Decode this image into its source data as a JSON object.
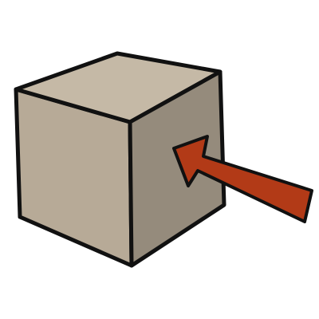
{
  "illustration": {
    "subject": "cube-with-arrow",
    "colors": {
      "background": "#ffffff",
      "outline": "#111111",
      "cube_front": "#b7aa97",
      "cube_top": "#c5b9a6",
      "cube_side": "#958b7c",
      "arrow": "#b23a17"
    },
    "arrow_direction": "pointing-into-cube-side"
  }
}
